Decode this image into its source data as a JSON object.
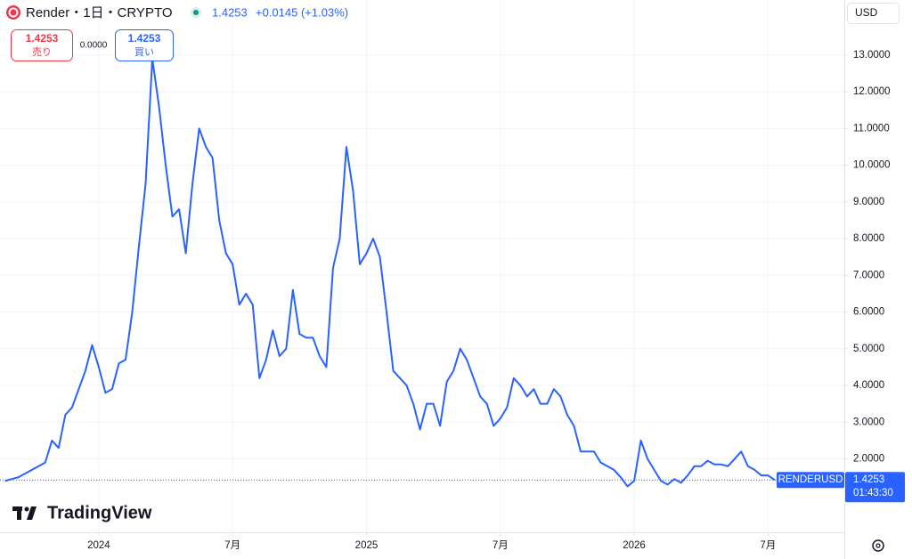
{
  "header": {
    "title": "Render・1日・CRYPTO",
    "price": "1.4253",
    "change": "+0.0145 (+1.03%)",
    "currency": "USD"
  },
  "order": {
    "sell_price": "1.4253",
    "sell_label": "売り",
    "spread": "0.0000",
    "buy_price": "1.4253",
    "buy_label": "買い"
  },
  "last_label": {
    "price": "1.4253",
    "countdown": "01:43:30"
  },
  "brand": "TradingView",
  "chart_data": {
    "type": "line",
    "grid": true,
    "xlim": [
      2023.631,
      2026.785
    ],
    "ylim": [
      0,
      14.5
    ],
    "xticks": [
      {
        "value": 2024,
        "label": "2024"
      },
      {
        "value": 2024.5,
        "label": "7月"
      },
      {
        "value": 2025,
        "label": "2025"
      },
      {
        "value": 2025.5,
        "label": "7月"
      },
      {
        "value": 2026,
        "label": "2026"
      },
      {
        "value": 2026.5,
        "label": "7月"
      }
    ],
    "yticks": [
      {
        "value": 2,
        "label": "2.0000"
      },
      {
        "value": 3,
        "label": "3.0000"
      },
      {
        "value": 4,
        "label": "4.0000"
      },
      {
        "value": 5,
        "label": "5.0000"
      },
      {
        "value": 6,
        "label": "6.0000"
      },
      {
        "value": 7,
        "label": "7.0000"
      },
      {
        "value": 8,
        "label": "8.0000"
      },
      {
        "value": 9,
        "label": "9.0000"
      },
      {
        "value": 10,
        "label": "10.0000"
      },
      {
        "value": 11,
        "label": "11.0000"
      },
      {
        "value": 12,
        "label": "12.0000"
      },
      {
        "value": 13,
        "label": "13.0000"
      }
    ],
    "series": [
      {
        "name": "RENDERUSD",
        "color": "#2962ff",
        "x": [
          2023.65,
          2023.675,
          2023.7,
          2023.725,
          2023.75,
          2023.775,
          2023.8,
          2023.825,
          2023.85,
          2023.875,
          2023.9,
          2023.925,
          2023.95,
          2023.975,
          2024,
          2024.025,
          2024.05,
          2024.075,
          2024.1,
          2024.125,
          2024.15,
          2024.175,
          2024.2,
          2024.225,
          2024.25,
          2024.275,
          2024.3,
          2024.325,
          2024.35,
          2024.375,
          2024.4,
          2024.425,
          2024.45,
          2024.475,
          2024.5,
          2024.525,
          2024.55,
          2024.575,
          2024.6,
          2024.625,
          2024.65,
          2024.675,
          2024.7,
          2024.725,
          2024.75,
          2024.775,
          2024.8,
          2024.825,
          2024.85,
          2024.875,
          2024.9,
          2024.925,
          2024.95,
          2024.975,
          2025,
          2025.025,
          2025.05,
          2025.075,
          2025.1,
          2025.125,
          2025.15,
          2025.175,
          2025.2,
          2025.225,
          2025.25,
          2025.275,
          2025.3,
          2025.325,
          2025.35,
          2025.375,
          2025.4,
          2025.425,
          2025.45,
          2025.475,
          2025.5,
          2025.525,
          2025.55,
          2025.575,
          2025.6,
          2025.625,
          2025.65,
          2025.675,
          2025.7,
          2025.725,
          2025.75,
          2025.775,
          2025.8,
          2025.825,
          2025.85,
          2025.875,
          2025.9,
          2025.925,
          2025.95,
          2025.975,
          2026,
          2026.025,
          2026.05,
          2026.075,
          2026.1,
          2026.125,
          2026.15,
          2026.175,
          2026.2,
          2026.225,
          2026.25,
          2026.275,
          2026.3,
          2026.325,
          2026.35,
          2026.375,
          2026.4,
          2026.425,
          2026.45,
          2026.475,
          2026.5,
          2026.525
        ],
        "values": [
          1.4,
          1.45,
          1.5,
          1.6,
          1.7,
          1.8,
          1.9,
          2.5,
          2.3,
          3.2,
          3.4,
          3.9,
          4.4,
          5.1,
          4.5,
          3.8,
          3.9,
          4.6,
          4.7,
          6.0,
          7.8,
          9.5,
          12.9,
          11.6,
          10.0,
          8.6,
          8.8,
          7.6,
          9.5,
          11.0,
          10.5,
          10.2,
          8.5,
          7.6,
          7.3,
          6.2,
          6.5,
          6.2,
          4.2,
          4.7,
          5.5,
          4.8,
          5.0,
          6.6,
          5.4,
          5.3,
          5.3,
          4.8,
          4.5,
          7.2,
          8.0,
          10.5,
          9.3,
          7.3,
          7.6,
          8.0,
          7.5,
          6.0,
          4.4,
          4.2,
          4.0,
          3.5,
          2.8,
          3.5,
          3.5,
          2.9,
          4.1,
          4.4,
          5.0,
          4.7,
          4.2,
          3.7,
          3.5,
          2.9,
          3.1,
          3.4,
          4.2,
          4.0,
          3.7,
          3.9,
          3.5,
          3.5,
          3.9,
          3.7,
          3.2,
          2.9,
          2.2,
          2.2,
          2.2,
          1.9,
          1.8,
          1.7,
          1.5,
          1.25,
          1.4,
          2.5,
          2.0,
          1.7,
          1.4,
          1.3,
          1.45,
          1.35,
          1.55,
          1.8,
          1.8,
          1.95,
          1.85,
          1.85,
          1.8,
          2.0,
          2.2,
          1.8,
          1.7,
          1.55,
          1.55,
          1.4253
        ]
      }
    ]
  }
}
